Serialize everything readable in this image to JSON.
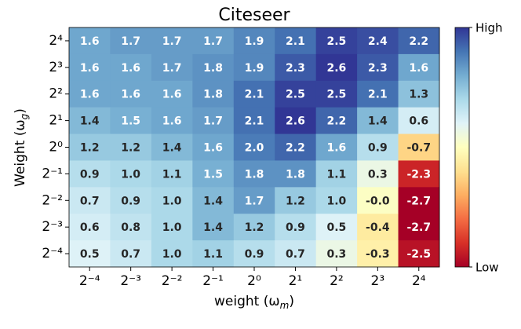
{
  "chart_data": {
    "type": "heatmap",
    "title": "Citeseer",
    "x_label": {
      "main": "weight (ω",
      "sub": "m",
      "end": ")"
    },
    "y_label": {
      "main": "Weight (ω",
      "sub": "g",
      "end": ")"
    },
    "x_categories": [
      "2⁻⁴",
      "2⁻³",
      "2⁻²",
      "2⁻¹",
      "2⁰",
      "2¹",
      "2²",
      "2³",
      "2⁴"
    ],
    "y_categories": [
      "2⁴",
      "2³",
      "2²",
      "2¹",
      "2⁰",
      "2⁻¹",
      "2⁻²",
      "2⁻³",
      "2⁻⁴"
    ],
    "values": [
      [
        1.6,
        1.7,
        1.7,
        1.7,
        1.9,
        2.1,
        2.5,
        2.4,
        2.2
      ],
      [
        1.6,
        1.6,
        1.7,
        1.8,
        1.9,
        2.3,
        2.6,
        2.3,
        1.6
      ],
      [
        1.6,
        1.6,
        1.6,
        1.8,
        2.1,
        2.5,
        2.5,
        2.1,
        1.3
      ],
      [
        1.4,
        1.5,
        1.6,
        1.7,
        2.1,
        2.6,
        2.2,
        1.4,
        0.6
      ],
      [
        1.2,
        1.2,
        1.4,
        1.6,
        2.0,
        2.2,
        1.6,
        0.9,
        -0.7
      ],
      [
        0.9,
        1.0,
        1.1,
        1.5,
        1.8,
        1.8,
        1.1,
        0.3,
        -2.3
      ],
      [
        0.7,
        0.9,
        1.0,
        1.4,
        1.7,
        1.2,
        1.0,
        0,
        -2.7
      ],
      [
        0.6,
        0.8,
        1.0,
        1.4,
        1.2,
        0.9,
        0.5,
        -0.4,
        -2.7
      ],
      [
        0.5,
        0.7,
        1.0,
        1.1,
        0.9,
        0.7,
        0.3,
        -0.3,
        -2.5
      ]
    ],
    "value_labels": [
      [
        "1.6",
        "1.7",
        "1.7",
        "1.7",
        "1.9",
        "2.1",
        "2.5",
        "2.4",
        "2.2"
      ],
      [
        "1.6",
        "1.6",
        "1.7",
        "1.8",
        "1.9",
        "2.3",
        "2.6",
        "2.3",
        "1.6"
      ],
      [
        "1.6",
        "1.6",
        "1.6",
        "1.8",
        "2.1",
        "2.5",
        "2.5",
        "2.1",
        "1.3"
      ],
      [
        "1.4",
        "1.5",
        "1.6",
        "1.7",
        "2.1",
        "2.6",
        "2.2",
        "1.4",
        "0.6"
      ],
      [
        "1.2",
        "1.2",
        "1.4",
        "1.6",
        "2.0",
        "2.2",
        "1.6",
        "0.9",
        "-0.7"
      ],
      [
        "0.9",
        "1.0",
        "1.1",
        "1.5",
        "1.8",
        "1.8",
        "1.1",
        "0.3",
        "-2.3"
      ],
      [
        "0.7",
        "0.9",
        "1.0",
        "1.4",
        "1.7",
        "1.2",
        "1.0",
        "-0.0",
        "-2.7"
      ],
      [
        "0.6",
        "0.8",
        "1.0",
        "1.4",
        "1.2",
        "0.9",
        "0.5",
        "-0.4",
        "-2.7"
      ],
      [
        "0.5",
        "0.7",
        "1.0",
        "1.1",
        "0.9",
        "0.7",
        "0.3",
        "-0.3",
        "-2.5"
      ]
    ],
    "colormap": "RdYlBu",
    "colorbar_labels": {
      "high": "High",
      "low": "Low"
    }
  }
}
